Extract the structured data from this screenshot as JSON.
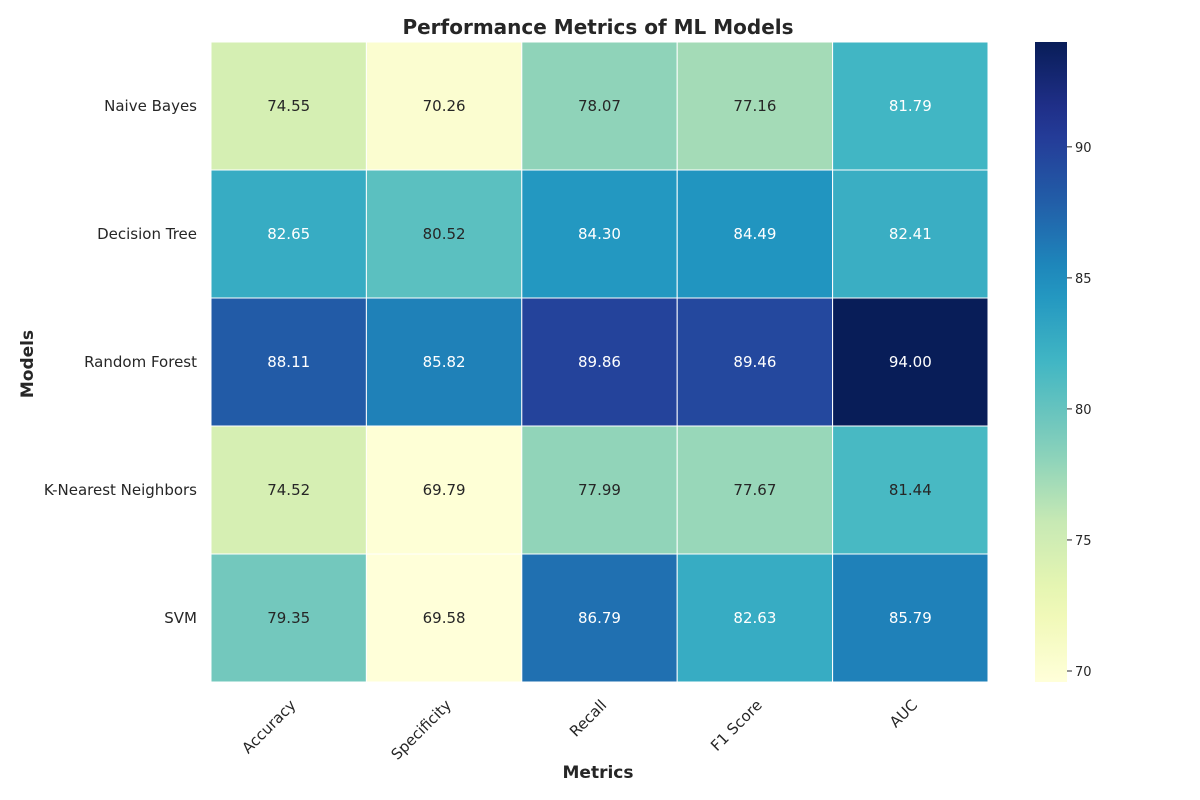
{
  "chart_data": {
    "type": "heatmap",
    "title": "Performance Metrics of ML Models",
    "xlabel": "Metrics",
    "ylabel": "Models",
    "columns": [
      "Accuracy",
      "Specificity",
      "Recall",
      "F1 Score",
      "AUC"
    ],
    "rows": [
      "Naive Bayes",
      "Decision Tree",
      "Random Forest",
      "K-Nearest Neighbors",
      "SVM"
    ],
    "values": [
      [
        74.55,
        70.26,
        78.07,
        77.16,
        81.79
      ],
      [
        82.65,
        80.52,
        84.3,
        84.49,
        82.41
      ],
      [
        88.11,
        85.82,
        89.86,
        89.46,
        94.0
      ],
      [
        74.52,
        69.79,
        77.99,
        77.67,
        81.44
      ],
      [
        79.35,
        69.58,
        86.79,
        82.63,
        85.79
      ]
    ],
    "value_labels": [
      [
        "74.55",
        "70.26",
        "78.07",
        "77.16",
        "81.79"
      ],
      [
        "82.65",
        "80.52",
        "84.30",
        "84.49",
        "82.41"
      ],
      [
        "88.11",
        "85.82",
        "89.86",
        "89.46",
        "94.00"
      ],
      [
        "74.52",
        "69.79",
        "77.99",
        "77.67",
        "81.44"
      ],
      [
        "79.35",
        "69.58",
        "86.79",
        "82.63",
        "85.79"
      ]
    ],
    "colormap": "YlGnBu",
    "color_range": [
      69.58,
      94.0
    ],
    "colorbar_ticks": [
      70,
      75,
      80,
      85,
      90
    ],
    "colorbar_tick_labels": [
      "70",
      "75",
      "80",
      "85",
      "90"
    ],
    "grid": false,
    "legend": "colorbar-right"
  }
}
